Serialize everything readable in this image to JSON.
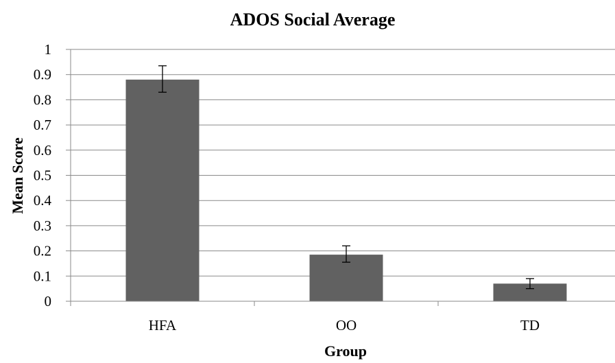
{
  "chart_data": {
    "type": "bar",
    "title": "ADOS Social Average",
    "xlabel": "Group",
    "ylabel": "Mean Score",
    "categories": [
      "HFA",
      "OO",
      "TD"
    ],
    "values": [
      0.88,
      0.185,
      0.07
    ],
    "error_bars": [
      {
        "low": 0.83,
        "high": 0.935
      },
      {
        "low": 0.155,
        "high": 0.22
      },
      {
        "low": 0.05,
        "high": 0.09
      }
    ],
    "ylim": [
      0,
      1
    ],
    "yticks": [
      "0",
      "0.1",
      "0.2",
      "0.3",
      "0.4",
      "0.5",
      "0.6",
      "0.7",
      "0.8",
      "0.9",
      "1"
    ],
    "grid": true,
    "legend": "none",
    "colors": {
      "bar": "#616161",
      "grid": "#8a8a8a",
      "axis": "#8a8a8a",
      "error_bar": "#000000"
    }
  }
}
